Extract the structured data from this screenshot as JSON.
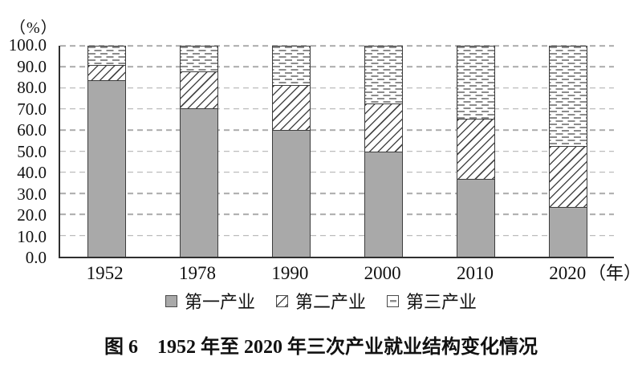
{
  "title": "图 6　1952 年至 2020 年三次产业就业结构变化情况",
  "chart_data": {
    "type": "bar",
    "stacked": true,
    "title": "图 6　1952 年至 2020 年三次产业就业结构变化情况",
    "y_axis_unit": "（%）",
    "x_axis_suffix": "（年）",
    "categories": [
      "1952",
      "1978",
      "1990",
      "2000",
      "2010",
      "2020"
    ],
    "series": [
      {
        "name": "第一产业",
        "pattern": "solid-gray",
        "values": [
          83.5,
          70.5,
          60.1,
          50.0,
          36.7,
          23.6
        ]
      },
      {
        "name": "第二产业",
        "pattern": "diagonal-hatch",
        "values": [
          7.4,
          17.3,
          21.4,
          22.5,
          28.7,
          28.7
        ]
      },
      {
        "name": "第三产业",
        "pattern": "dash-texture",
        "values": [
          9.1,
          12.2,
          18.5,
          27.5,
          34.6,
          47.7
        ]
      }
    ],
    "y_ticks": [
      "100.0",
      "90.0",
      "80.0",
      "70.0",
      "60.0",
      "50.0",
      "40.0",
      "30.0",
      "20.0",
      "10.0",
      "0.0"
    ],
    "ylim": [
      0,
      100
    ],
    "grid": "dashed-horizontal",
    "legend_position": "bottom"
  },
  "colors": {
    "primary_fill": "#a9a9a9",
    "bar_border": "#3d3d3d",
    "hatch_line": "#4a4a4a",
    "dash_mark": "#8c8c8c",
    "gridline": "#ababab",
    "axis": "#2f2f2f",
    "text": "#111111",
    "background": "#ffffff"
  }
}
